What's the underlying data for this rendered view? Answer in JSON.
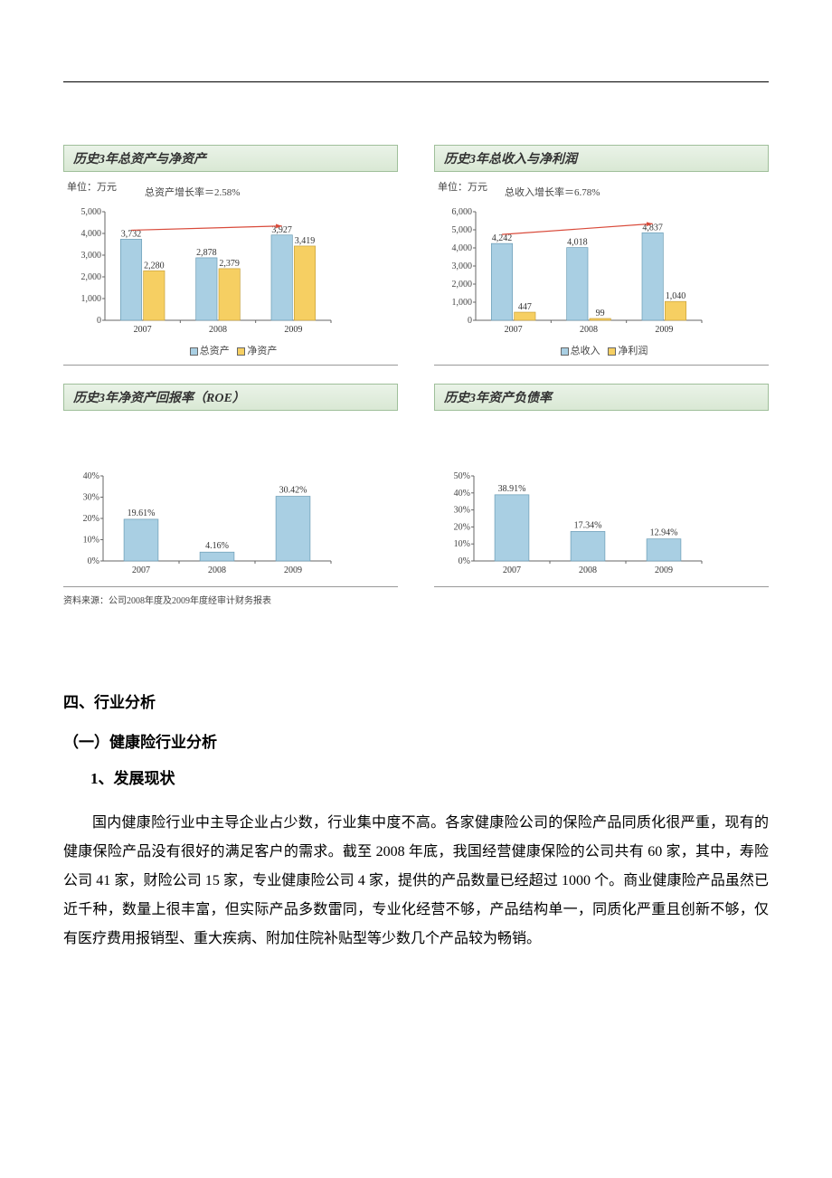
{
  "colors": {
    "bar_primary": "#a9cfe3",
    "bar_secondary": "#f6cf62",
    "bar_border": "#6a9cb5",
    "bar_border2": "#c9a23a",
    "axis": "#666666",
    "grid": "#d8d8d8",
    "arrow": "#d94a3a",
    "title_bg_top": "#eaf3e8",
    "title_bg_bot": "#d9e8d4",
    "title_border": "#9fbf9a"
  },
  "chart1": {
    "title": "历史3年总资产与净资产",
    "unit": "单位：万元",
    "growth_label": "总资产增长率＝2.58%",
    "categories": [
      "2007",
      "2008",
      "2009"
    ],
    "series": [
      {
        "name": "总资产",
        "color": "#a9cfe3",
        "border": "#6a9cb5",
        "values": [
          3732,
          2878,
          3927
        ]
      },
      {
        "name": "净资产",
        "color": "#f6cf62",
        "border": "#c9a23a",
        "values": [
          2280,
          2379,
          3419
        ]
      }
    ],
    "ylim": [
      0,
      5000
    ],
    "ytick_step": 1000,
    "legend": [
      "总资产",
      "净资产"
    ]
  },
  "chart2": {
    "title": "历史3年总收入与净利润",
    "unit": "单位：万元",
    "growth_label": "总收入增长率＝6.78%",
    "categories": [
      "2007",
      "2008",
      "2009"
    ],
    "series": [
      {
        "name": "总收入",
        "color": "#a9cfe3",
        "border": "#6a9cb5",
        "values": [
          4242,
          4018,
          4837
        ]
      },
      {
        "name": "净利润",
        "color": "#f6cf62",
        "border": "#c9a23a",
        "values": [
          447,
          99,
          1040
        ]
      }
    ],
    "ylim": [
      0,
      6000
    ],
    "ytick_step": 1000,
    "legend": [
      "总收入",
      "净利润"
    ]
  },
  "chart3": {
    "title": "历史3年净资产回报率（ROE）",
    "categories": [
      "2007",
      "2008",
      "2009"
    ],
    "values": [
      19.61,
      4.16,
      30.42
    ],
    "value_labels": [
      "19.61%",
      "4.16%",
      "30.42%"
    ],
    "ylim": [
      0,
      40
    ],
    "yticks": [
      "0%",
      "10%",
      "20%",
      "30%",
      "40%"
    ],
    "bar_color": "#a9cfe3",
    "bar_border": "#6a9cb5"
  },
  "chart4": {
    "title": "历史3年资产负债率",
    "categories": [
      "2007",
      "2008",
      "2009"
    ],
    "values": [
      38.91,
      17.34,
      12.94
    ],
    "value_labels": [
      "38.91%",
      "17.34%",
      "12.94%"
    ],
    "ylim": [
      0,
      50
    ],
    "yticks": [
      "0%",
      "10%",
      "20%",
      "30%",
      "40%",
      "50%"
    ],
    "bar_color": "#a9cfe3",
    "bar_border": "#6a9cb5"
  },
  "source_note": "资料来源：公司2008年度及2009年度经审计财务报表",
  "section": {
    "h1": "四、行业分析",
    "h2": "（一）健康险行业分析",
    "h3": "1、发展现状",
    "para": "国内健康险行业中主导企业占少数，行业集中度不高。各家健康险公司的保险产品同质化很严重，现有的健康保险产品没有很好的满足客户的需求。截至 2008 年底，我国经营健康保险的公司共有 60 家，其中，寿险公司 41 家，财险公司 15 家，专业健康险公司 4 家，提供的产品数量已经超过 1000 个。商业健康险产品虽然已近千种，数量上很丰富，但实际产品多数雷同，专业化经营不够，产品结构单一，同质化严重且创新不够，仅有医疗费用报销型、重大疾病、附加住院补贴型等少数几个产品较为畅销。"
  }
}
